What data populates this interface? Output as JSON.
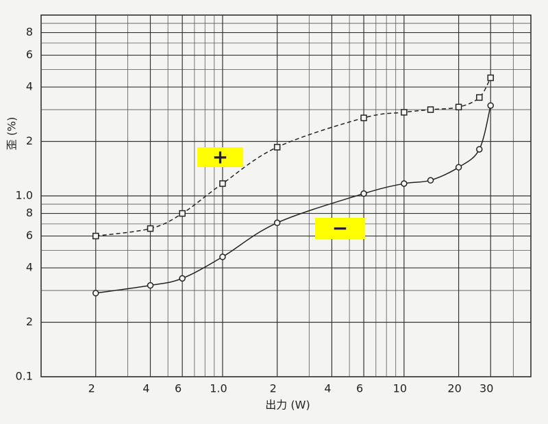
{
  "chart_data": {
    "type": "line",
    "xlabel": "出力 (W)",
    "ylabel": "歪 (%)",
    "xscale": "log",
    "yscale": "log",
    "grid": true,
    "xlim": [
      0.1,
      50
    ],
    "ylim": [
      0.1,
      10
    ],
    "xticks": [
      {
        "value": 0.2,
        "label": "2"
      },
      {
        "value": 0.4,
        "label": "4"
      },
      {
        "value": 0.6,
        "label": "6"
      },
      {
        "value": 1,
        "label": "1.0"
      },
      2,
      4,
      6,
      10,
      20,
      30
    ],
    "yticks": [
      0.1,
      {
        "value": 0.2,
        "label": "2"
      },
      {
        "value": 0.4,
        "label": "4"
      },
      {
        "value": 0.6,
        "label": "6"
      },
      {
        "value": 0.8,
        "label": "8"
      },
      {
        "value": 1,
        "label": "1.0"
      },
      2,
      4,
      6,
      8
    ],
    "xminor": [
      0.3,
      0.5,
      0.7,
      0.8,
      0.9,
      3,
      5,
      7,
      8,
      9,
      40
    ],
    "yminor": [
      0.3,
      0.5,
      0.7,
      0.9,
      3,
      5,
      7,
      9
    ],
    "series": [
      {
        "name": "+",
        "color": "#222222",
        "linestyle": "dashed",
        "marker": "square",
        "label_color": "#ffff00",
        "x": [
          0.2,
          0.4,
          0.6,
          1,
          2,
          6,
          10,
          14,
          20,
          26,
          30
        ],
        "values": [
          0.6,
          0.66,
          0.8,
          1.17,
          1.86,
          2.7,
          2.9,
          3.0,
          3.1,
          3.5,
          4.5
        ]
      },
      {
        "name": "−",
        "color": "#222222",
        "linestyle": "solid",
        "marker": "circle",
        "label_color": "#ffff00",
        "x": [
          0.2,
          0.4,
          0.6,
          1,
          2,
          6,
          10,
          14,
          20,
          26,
          30
        ],
        "values": [
          0.29,
          0.32,
          0.35,
          0.46,
          0.71,
          1.03,
          1.17,
          1.22,
          1.44,
          1.81,
          3.16
        ]
      }
    ]
  }
}
